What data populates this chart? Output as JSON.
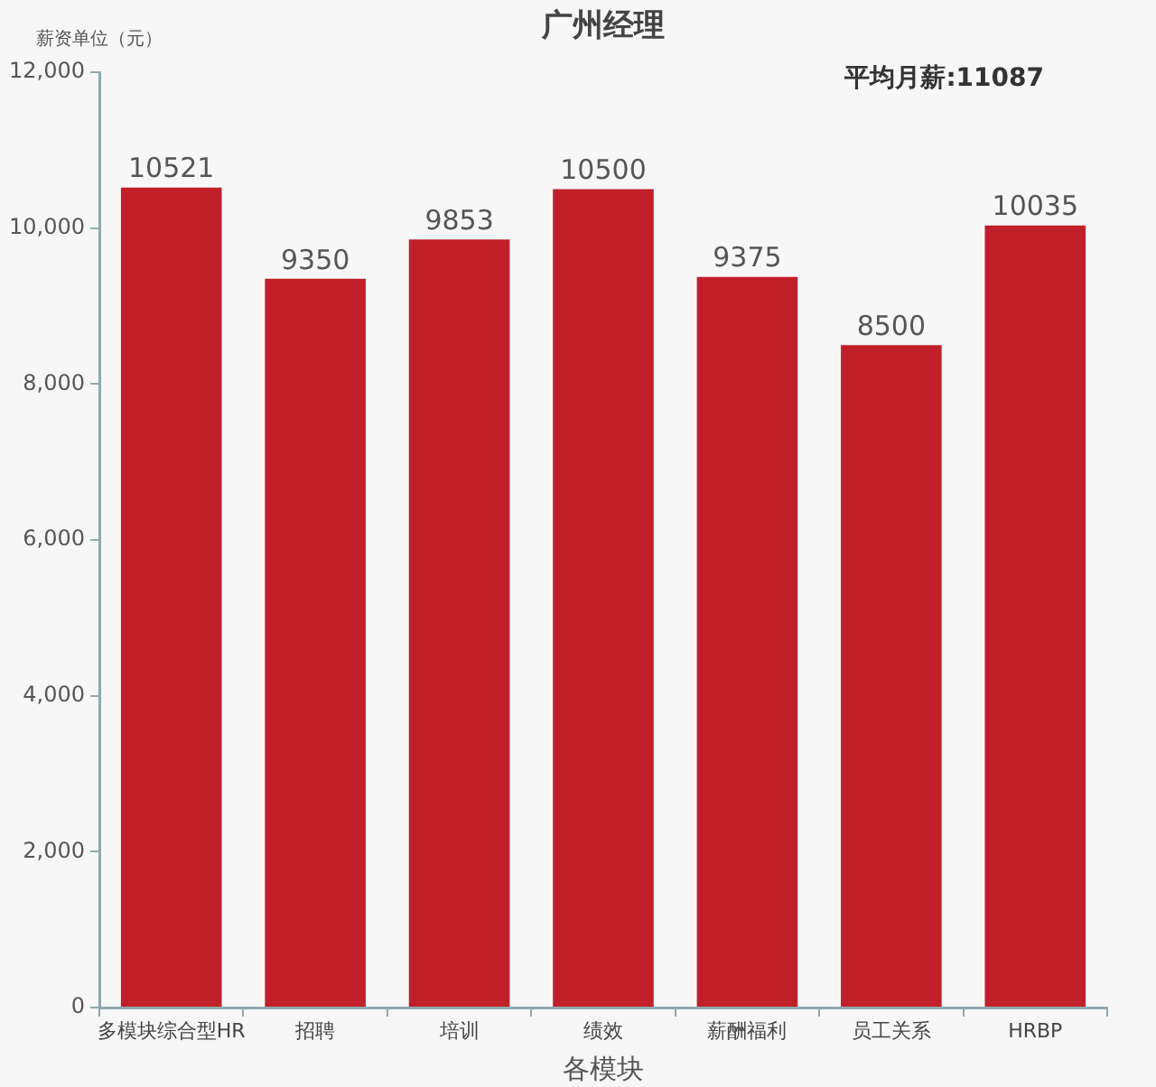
{
  "chart_data": {
    "type": "bar",
    "title": "广州经理",
    "ylabel": "薪资单位（元）",
    "xlabel": "各模块",
    "annotations": [
      "平均月薪:11087"
    ],
    "categories": [
      "多模块综合型HR",
      "招聘",
      "培训",
      "绩效",
      "薪酬福利",
      "员工关系",
      "HRBP"
    ],
    "values": [
      10521,
      9350,
      9853,
      10500,
      9375,
      8500,
      10035
    ],
    "color": "#c1202b",
    "ylim": [
      0,
      12000
    ],
    "yticks": [
      0,
      {
        "value": 2000,
        "label": "2,000"
      },
      {
        "value": 4000,
        "label": "4,000"
      },
      {
        "value": 6000,
        "label": "6,000"
      },
      {
        "value": 8000,
        "label": "8,000"
      },
      {
        "value": 10000,
        "label": "10,000"
      },
      {
        "value": 12000,
        "label": "12,000"
      }
    ],
    "data_labels": true
  }
}
